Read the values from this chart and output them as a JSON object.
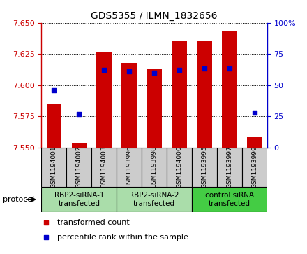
{
  "title": "GDS5355 / ILMN_1832656",
  "samples": [
    "GSM1194001",
    "GSM1194002",
    "GSM1194003",
    "GSM1193996",
    "GSM1193998",
    "GSM1194000",
    "GSM1193995",
    "GSM1193997",
    "GSM1193999"
  ],
  "bar_values": [
    7.585,
    7.553,
    7.627,
    7.618,
    7.613,
    7.636,
    7.636,
    7.643,
    7.558
  ],
  "bar_bottom": 7.55,
  "blue_dot_values": [
    46,
    27,
    62,
    61,
    60,
    62,
    63,
    63,
    28
  ],
  "ylim": [
    7.55,
    7.65
  ],
  "y2lim": [
    0,
    100
  ],
  "yticks": [
    7.55,
    7.575,
    7.6,
    7.625,
    7.65
  ],
  "y2ticks": [
    0,
    25,
    50,
    75,
    100
  ],
  "bar_color": "#cc0000",
  "dot_color": "#0000cc",
  "bar_width": 0.6,
  "groups": [
    {
      "label": "RBP2-siRNA-1\ntransfected",
      "start": 0,
      "end": 3,
      "color": "#bbeeaa"
    },
    {
      "label": "RBP2-siRNA-2\ntransfected",
      "start": 3,
      "end": 6,
      "color": "#bbeeaa"
    },
    {
      "label": "control siRNA\ntransfected",
      "start": 6,
      "end": 9,
      "color": "#44cc44"
    }
  ],
  "legend_items": [
    {
      "label": "transformed count",
      "color": "#cc0000"
    },
    {
      "label": "percentile rank within the sample",
      "color": "#0000cc"
    }
  ],
  "protocol_label": "protocol",
  "sample_box_color": "#cccccc",
  "fig_bg": "#ffffff"
}
